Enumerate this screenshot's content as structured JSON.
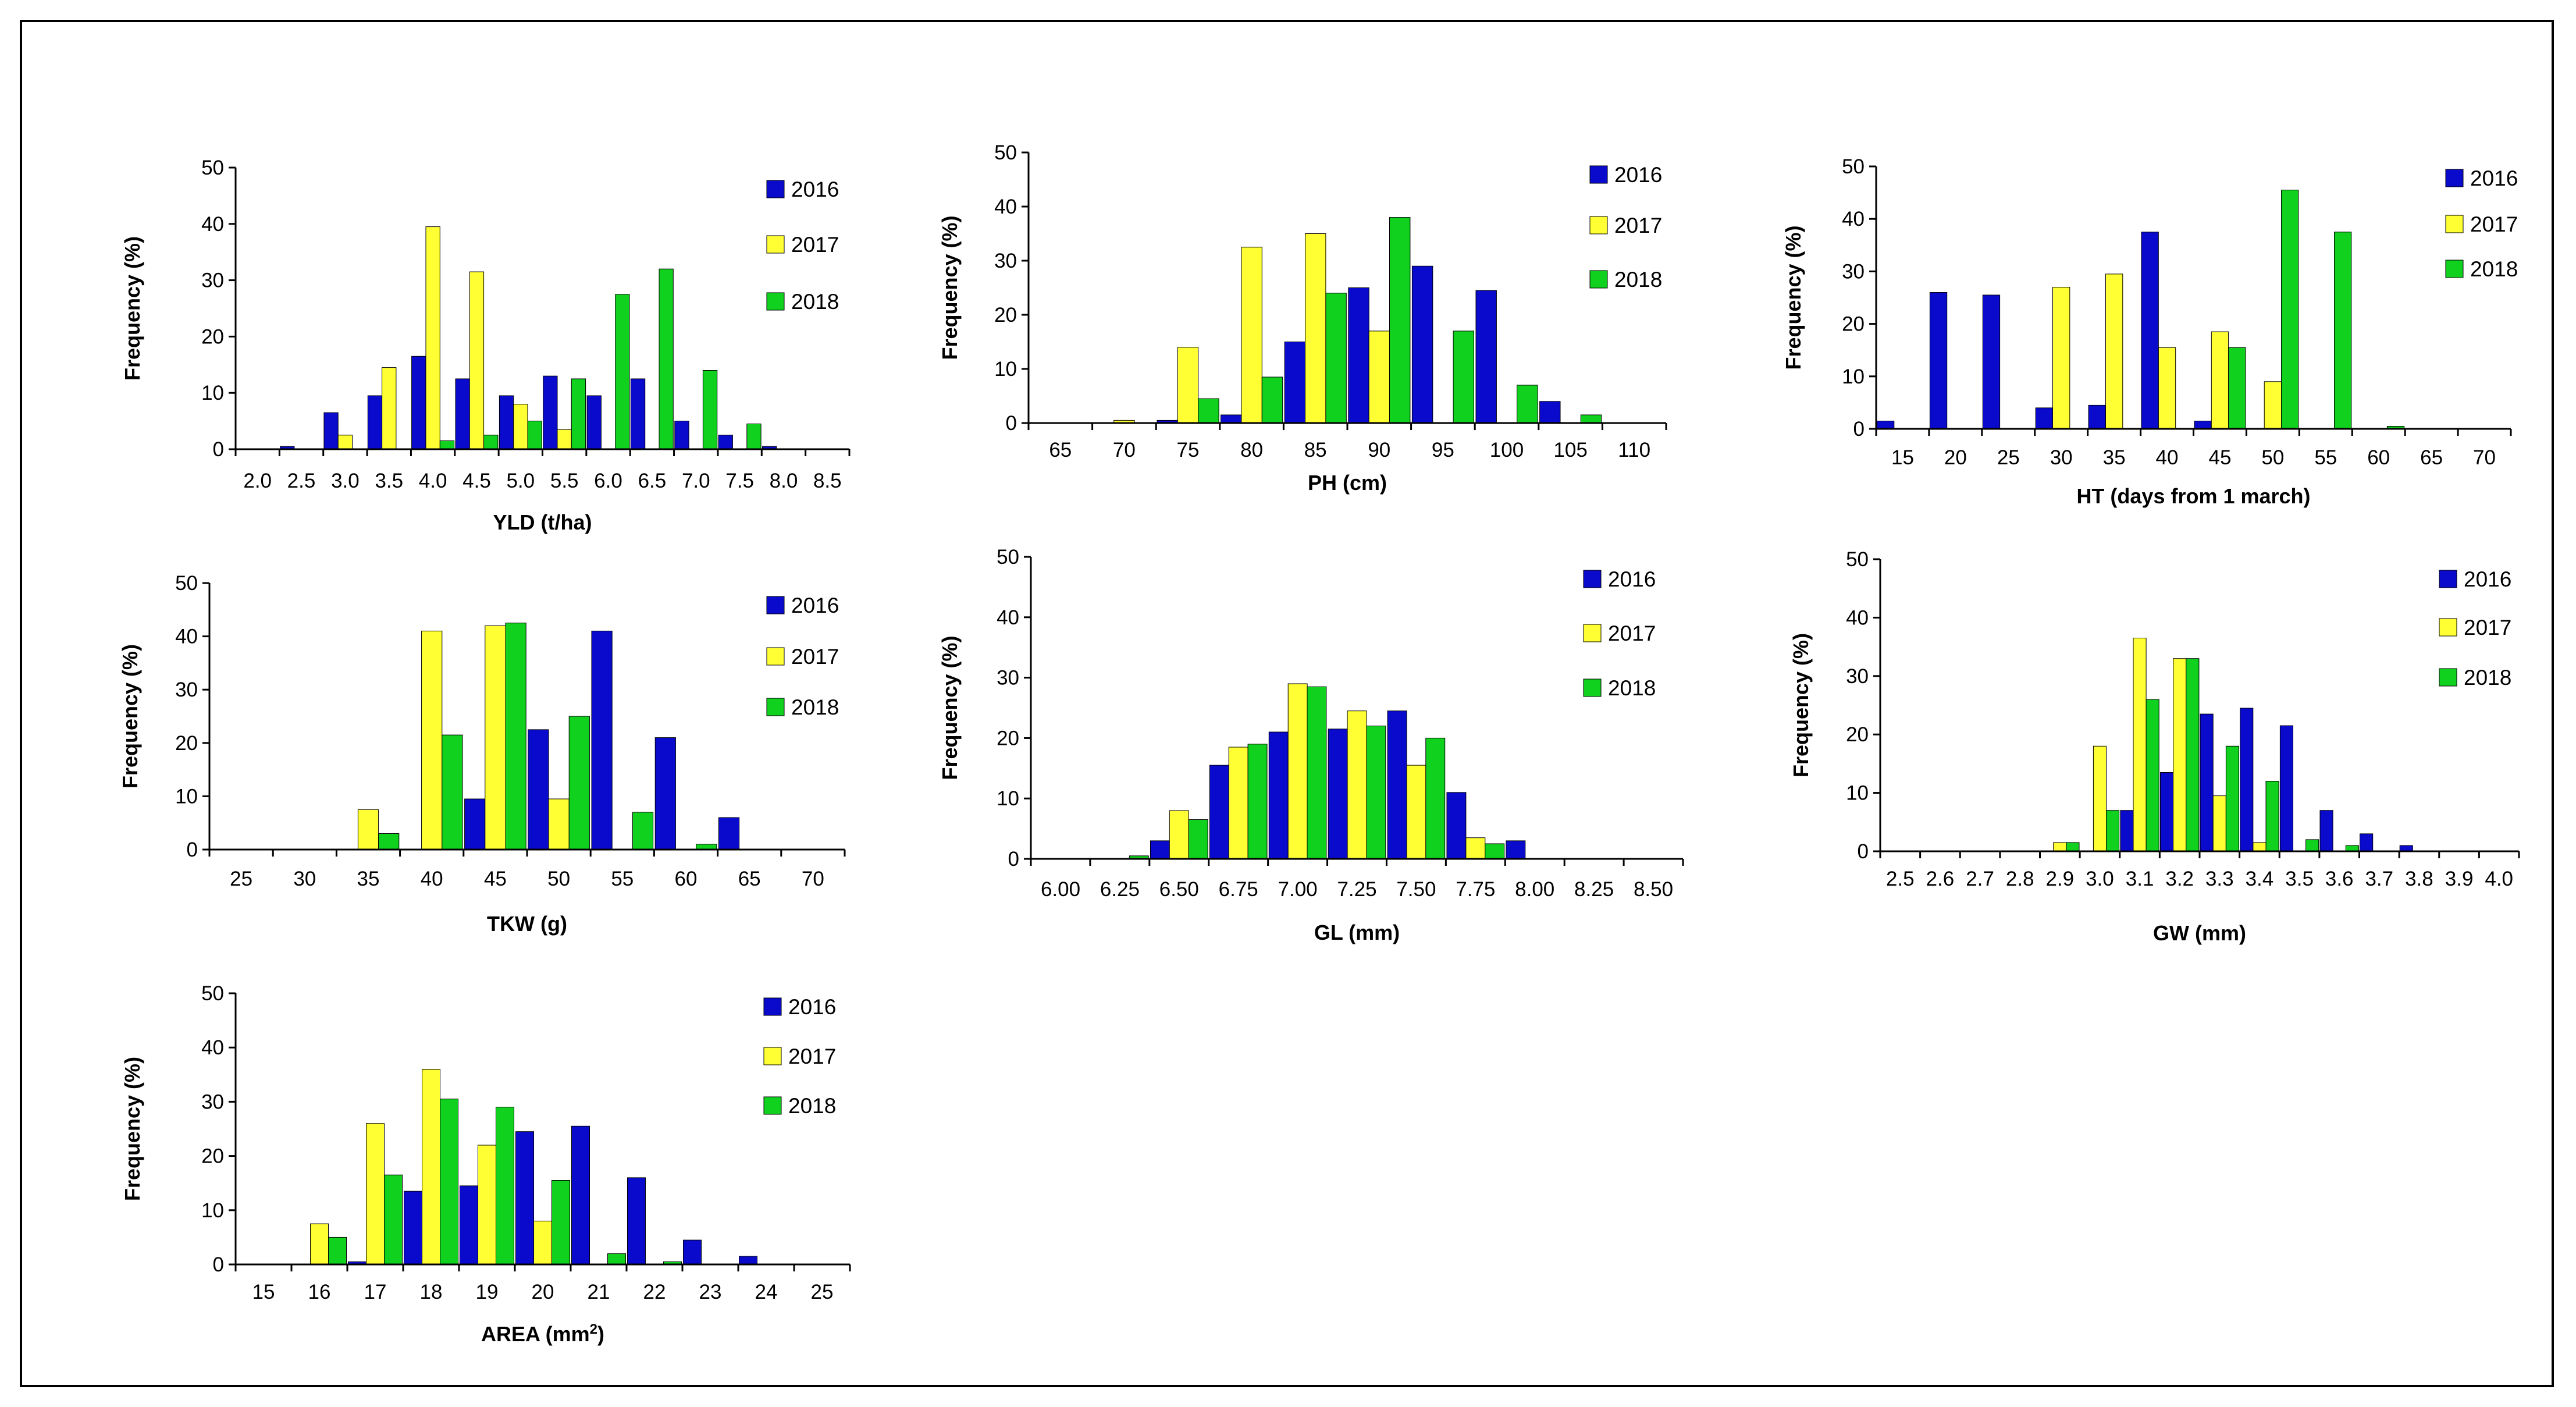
{
  "colors": {
    "2016": "#0A0ACD",
    "2017": "#FFFF33",
    "2018": "#11D11F",
    "axis": "#000000"
  },
  "legend_labels": [
    "2016",
    "2017",
    "2018"
  ],
  "chart_data": [
    {
      "id": "yld",
      "type": "bar",
      "xlabel": "YLD (t/ha)",
      "ylabel": "Frequency (%)",
      "ylim": [
        0,
        50
      ],
      "yticks": [
        0,
        10,
        20,
        30,
        40,
        50
      ],
      "tick_labels": [
        "2.0",
        "2.5",
        "3.0",
        "3.5",
        "4.0",
        "4.5",
        "5.0",
        "5.5",
        "6.0",
        "6.5",
        "7.0",
        "7.5",
        "8.0",
        "8.5"
      ],
      "series": [
        {
          "name": "2016",
          "values": [
            0,
            0.5,
            6.5,
            9.5,
            16.5,
            12.5,
            9.5,
            13.0,
            9.5,
            12.5,
            5.0,
            2.5,
            0.5,
            0
          ]
        },
        {
          "name": "2017",
          "values": [
            0,
            0,
            2.5,
            14.5,
            39.5,
            31.5,
            8.0,
            3.5,
            0,
            0,
            0,
            0,
            0,
            0
          ]
        },
        {
          "name": "2018",
          "values": [
            0,
            0,
            0,
            0,
            1.5,
            2.5,
            5.0,
            12.5,
            27.5,
            32.0,
            14.0,
            4.5,
            0,
            0
          ]
        }
      ]
    },
    {
      "id": "ph",
      "type": "bar",
      "xlabel": "PH (cm)",
      "ylabel": "Frequency (%)",
      "ylim": [
        0,
        50
      ],
      "yticks": [
        0,
        10,
        20,
        30,
        40,
        50
      ],
      "tick_labels": [
        "65",
        "70",
        "75",
        "80",
        "85",
        "90",
        "95",
        "100",
        "105",
        "110"
      ],
      "series": [
        {
          "name": "2016",
          "values": [
            0,
            0,
            0.5,
            1.5,
            15.0,
            25.0,
            29.0,
            24.5,
            4.0,
            0
          ]
        },
        {
          "name": "2017",
          "values": [
            0,
            0.5,
            14.0,
            32.5,
            35.0,
            17.0,
            0,
            0,
            0,
            0
          ]
        },
        {
          "name": "2018",
          "values": [
            0,
            0,
            4.5,
            8.5,
            24.0,
            38.0,
            17.0,
            7.0,
            1.5,
            0
          ]
        }
      ]
    },
    {
      "id": "ht",
      "type": "bar",
      "xlabel": "HT (days from 1 march)",
      "ylabel": "Frequency (%)",
      "ylim": [
        0,
        50
      ],
      "yticks": [
        0,
        10,
        20,
        30,
        40,
        50
      ],
      "tick_labels": [
        "15",
        "20",
        "25",
        "30",
        "35",
        "40",
        "45",
        "50",
        "55",
        "60",
        "65",
        "70"
      ],
      "series": [
        {
          "name": "2016",
          "values": [
            1.5,
            26.0,
            25.5,
            4.0,
            4.5,
            37.5,
            1.5,
            0,
            0,
            0,
            0,
            0
          ]
        },
        {
          "name": "2017",
          "values": [
            0,
            0,
            0,
            27.0,
            29.5,
            15.5,
            18.5,
            9.0,
            0,
            0,
            0,
            0
          ]
        },
        {
          "name": "2018",
          "values": [
            0,
            0,
            0,
            0,
            0,
            0,
            15.5,
            45.5,
            37.5,
            0.5,
            0,
            0
          ]
        }
      ]
    },
    {
      "id": "tkw",
      "type": "bar",
      "xlabel": "TKW (g)",
      "ylabel": "Frequency (%)",
      "ylim": [
        0,
        50
      ],
      "yticks": [
        0,
        10,
        20,
        30,
        40,
        50
      ],
      "tick_labels": [
        "25",
        "30",
        "35",
        "40",
        "45",
        "50",
        "55",
        "60",
        "65",
        "70"
      ],
      "series": [
        {
          "name": "2016",
          "values": [
            0,
            0,
            0,
            0,
            9.5,
            22.5,
            41.0,
            21.0,
            6.0,
            0
          ]
        },
        {
          "name": "2017",
          "values": [
            0,
            0,
            7.5,
            41.0,
            42.0,
            9.5,
            0,
            0,
            0,
            0
          ]
        },
        {
          "name": "2018",
          "values": [
            0,
            0,
            3.0,
            21.5,
            42.5,
            25.0,
            7.0,
            1.0,
            0,
            0
          ]
        }
      ]
    },
    {
      "id": "gl",
      "type": "bar",
      "xlabel": "GL (mm)",
      "ylabel": "Frequency (%)",
      "ylim": [
        0,
        50
      ],
      "yticks": [
        0,
        10,
        20,
        30,
        40,
        50
      ],
      "tick_labels": [
        "6.00",
        "6.25",
        "6.50",
        "6.75",
        "7.00",
        "7.25",
        "7.50",
        "7.75",
        "8.00",
        "8.25",
        "8.50"
      ],
      "series": [
        {
          "name": "2016",
          "values": [
            0,
            0,
            3.0,
            15.5,
            21.0,
            21.5,
            24.5,
            11.0,
            3.0,
            0,
            0
          ]
        },
        {
          "name": "2017",
          "values": [
            0,
            0,
            8.0,
            18.5,
            29.0,
            24.5,
            15.5,
            3.5,
            0,
            0,
            0
          ]
        },
        {
          "name": "2018",
          "values": [
            0,
            0.5,
            6.5,
            19.0,
            28.5,
            22.0,
            20.0,
            2.5,
            0,
            0,
            0
          ]
        }
      ]
    },
    {
      "id": "gw",
      "type": "bar",
      "xlabel": "GW (mm)",
      "ylabel": "Frequency (%)",
      "ylim": [
        0,
        50
      ],
      "yticks": [
        0,
        10,
        20,
        30,
        40,
        50
      ],
      "tick_labels": [
        "2.5",
        "2.6",
        "2.7",
        "2.8",
        "2.9",
        "3.0",
        "3.1",
        "3.2",
        "3.3",
        "3.4",
        "3.5",
        "3.6",
        "3.7",
        "3.8",
        "3.9",
        "4.0"
      ],
      "series": [
        {
          "name": "2016",
          "values": [
            0,
            0,
            0,
            0,
            0,
            0,
            7.0,
            13.5,
            23.5,
            24.5,
            21.5,
            7.0,
            3.0,
            1.0,
            0,
            0
          ]
        },
        {
          "name": "2017",
          "values": [
            0,
            0,
            0,
            0,
            1.5,
            18.0,
            36.5,
            33.0,
            9.5,
            1.5,
            0,
            0,
            0,
            0,
            0,
            0
          ]
        },
        {
          "name": "2018",
          "values": [
            0,
            0,
            0,
            0,
            1.5,
            7.0,
            26.0,
            33.0,
            18.0,
            12.0,
            2.0,
            1.0,
            0,
            0,
            0,
            0
          ]
        }
      ]
    },
    {
      "id": "area",
      "type": "bar",
      "xlabel": "AREA (mm",
      "xlabel_sup": "2",
      "xlabel_end": ")",
      "ylabel": "Frequency (%)",
      "ylim": [
        0,
        50
      ],
      "yticks": [
        0,
        10,
        20,
        30,
        40,
        50
      ],
      "tick_labels": [
        "15",
        "16",
        "17",
        "18",
        "19",
        "20",
        "21",
        "22",
        "23",
        "24",
        "25"
      ],
      "series": [
        {
          "name": "2016",
          "values": [
            0,
            0,
            0.5,
            13.5,
            14.5,
            24.5,
            25.5,
            16.0,
            4.5,
            1.5,
            0
          ]
        },
        {
          "name": "2017",
          "values": [
            0,
            7.5,
            26.0,
            36.0,
            22.0,
            8.0,
            0,
            0,
            0,
            0,
            0
          ]
        },
        {
          "name": "2018",
          "values": [
            0,
            5.0,
            16.5,
            30.5,
            29.0,
            15.5,
            2.0,
            0.5,
            0,
            0,
            0
          ]
        }
      ]
    }
  ]
}
